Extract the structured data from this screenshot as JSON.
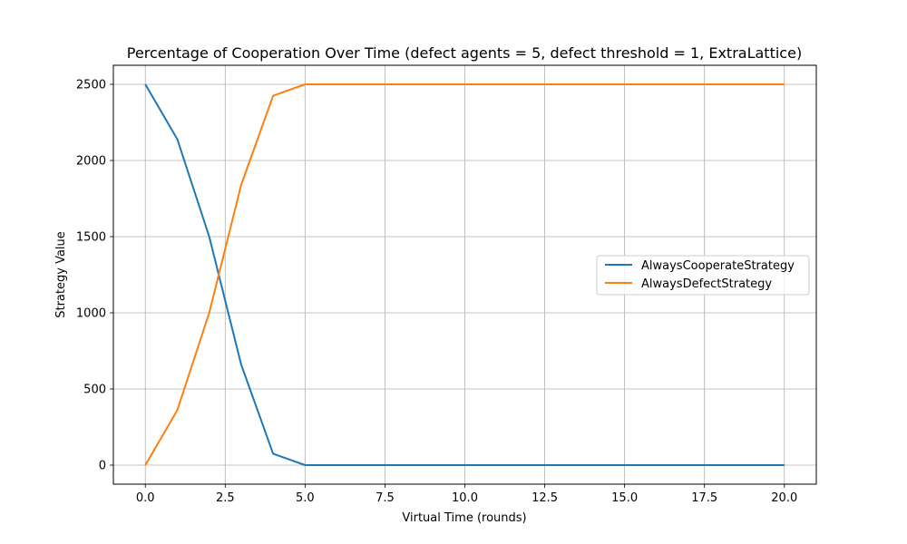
{
  "chart_data": {
    "type": "line",
    "title": "Percentage of Cooperation Over Time (defect agents = 5, defect threshold = 1, ExtraLattice)",
    "xlabel": "Virtual Time (rounds)",
    "ylabel": "Strategy Value",
    "xlim": [
      -1,
      21
    ],
    "ylim": [
      -125,
      2625
    ],
    "xticks": [
      0,
      2.5,
      5,
      7.5,
      10,
      12.5,
      15,
      17.5,
      20
    ],
    "xtick_labels": [
      "0.0",
      "2.5",
      "5.0",
      "7.5",
      "10.0",
      "12.5",
      "15.0",
      "17.5",
      "20.0"
    ],
    "yticks": [
      0,
      500,
      1000,
      1500,
      2000,
      2500
    ],
    "ytick_labels": [
      "0",
      "500",
      "1000",
      "1500",
      "2000",
      "2500"
    ],
    "grid": true,
    "legend_position": "center-right",
    "x": [
      0,
      1,
      2,
      3,
      4,
      5,
      6,
      7,
      8,
      9,
      10,
      11,
      12,
      13,
      14,
      15,
      16,
      17,
      18,
      19,
      20
    ],
    "series": [
      {
        "name": "AlwaysCooperateStrategy",
        "color": "#1f77b4",
        "values": [
          2500,
          2140,
          1500,
          660,
          75,
          0,
          0,
          0,
          0,
          0,
          0,
          0,
          0,
          0,
          0,
          0,
          0,
          0,
          0,
          0,
          0
        ]
      },
      {
        "name": "AlwaysDefectStrategy",
        "color": "#ff7f0e",
        "values": [
          0,
          360,
          1000,
          1840,
          2425,
          2500,
          2500,
          2500,
          2500,
          2500,
          2500,
          2500,
          2500,
          2500,
          2500,
          2500,
          2500,
          2500,
          2500,
          2500,
          2500
        ]
      }
    ]
  }
}
